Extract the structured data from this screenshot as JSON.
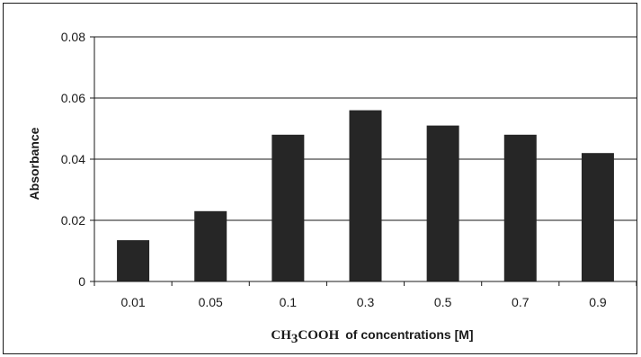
{
  "chart_data": {
    "type": "bar",
    "categories": [
      "0.01",
      "0.05",
      "0.1",
      "0.3",
      "0.5",
      "0.7",
      "0.9"
    ],
    "series": [
      {
        "values": [
          0.0135,
          0.023,
          0.048,
          0.056,
          0.051,
          0.048,
          0.042
        ]
      }
    ],
    "ylabel": "Absorbance",
    "xlabel": {
      "chemical_main_1": "CH",
      "chemical_subscript": "3",
      "chemical_main_2": "COOH",
      "rest": "of concentrations [M]"
    },
    "ylim": [
      0,
      0.08
    ],
    "yticks": [
      0,
      0.02,
      0.04,
      0.06,
      0.08
    ],
    "ytick_labels": [
      "0",
      "0.02",
      "0.04",
      "0.06",
      "0.08"
    ],
    "grid": "horizontal",
    "bar_color": "#262626",
    "legend": "none"
  }
}
